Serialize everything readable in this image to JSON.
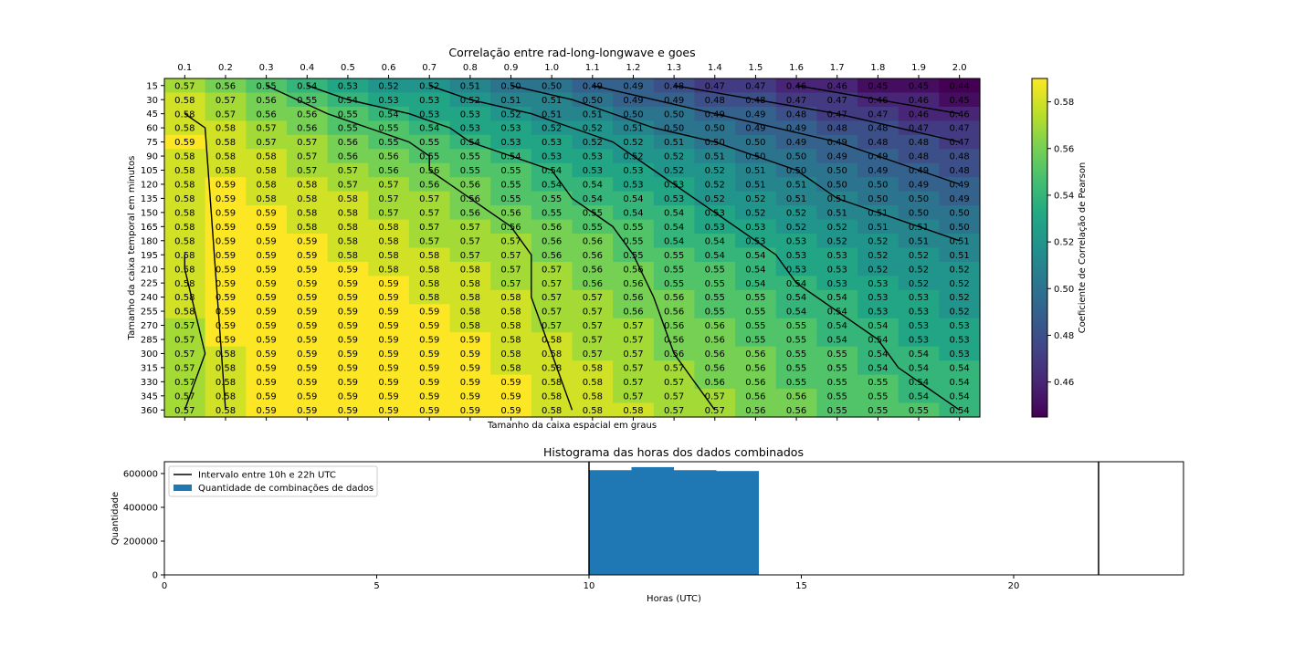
{
  "chart_data": [
    {
      "type": "heatmap",
      "title": "Correlação entre rad-long-longwave e goes",
      "xlabel": "Tamanho da caixa espacial em graus",
      "ylabel": "Tamanho da caixa temporal em minutos",
      "x": [
        "0.1",
        "0.2",
        "0.3",
        "0.4",
        "0.5",
        "0.6",
        "0.7",
        "0.8",
        "0.9",
        "1.0",
        "1.1",
        "1.2",
        "1.3",
        "1.4",
        "1.5",
        "1.6",
        "1.7",
        "1.8",
        "1.9",
        "2.0"
      ],
      "y": [
        "15",
        "30",
        "45",
        "60",
        "75",
        "90",
        "105",
        "120",
        "135",
        "150",
        "165",
        "180",
        "195",
        "210",
        "225",
        "240",
        "255",
        "270",
        "285",
        "300",
        "315",
        "330",
        "345",
        "360"
      ],
      "values": [
        [
          0.57,
          0.56,
          0.55,
          0.54,
          0.53,
          0.52,
          0.52,
          0.51,
          0.5,
          0.5,
          0.49,
          0.49,
          0.48,
          0.47,
          0.47,
          0.46,
          0.46,
          0.45,
          0.45,
          0.44
        ],
        [
          0.58,
          0.57,
          0.56,
          0.55,
          0.54,
          0.53,
          0.53,
          0.52,
          0.51,
          0.51,
          0.5,
          0.49,
          0.49,
          0.48,
          0.48,
          0.47,
          0.47,
          0.46,
          0.46,
          0.45
        ],
        [
          0.58,
          0.57,
          0.56,
          0.56,
          0.55,
          0.54,
          0.53,
          0.53,
          0.52,
          0.51,
          0.51,
          0.5,
          0.5,
          0.49,
          0.49,
          0.48,
          0.47,
          0.47,
          0.46,
          0.46
        ],
        [
          0.58,
          0.58,
          0.57,
          0.56,
          0.55,
          0.55,
          0.54,
          0.53,
          0.53,
          0.52,
          0.52,
          0.51,
          0.5,
          0.5,
          0.49,
          0.49,
          0.48,
          0.48,
          0.47,
          0.47
        ],
        [
          0.59,
          0.58,
          0.57,
          0.57,
          0.56,
          0.55,
          0.55,
          0.54,
          0.53,
          0.53,
          0.52,
          0.52,
          0.51,
          0.5,
          0.5,
          0.49,
          0.49,
          0.48,
          0.48,
          0.47
        ],
        [
          0.58,
          0.58,
          0.58,
          0.57,
          0.56,
          0.56,
          0.55,
          0.55,
          0.54,
          0.53,
          0.53,
          0.52,
          0.52,
          0.51,
          0.5,
          0.5,
          0.49,
          0.49,
          0.48,
          0.48
        ],
        [
          0.58,
          0.58,
          0.58,
          0.57,
          0.57,
          0.56,
          0.56,
          0.55,
          0.55,
          0.54,
          0.53,
          0.53,
          0.52,
          0.52,
          0.51,
          0.5,
          0.5,
          0.49,
          0.49,
          0.48
        ],
        [
          0.58,
          0.59,
          0.58,
          0.58,
          0.57,
          0.57,
          0.56,
          0.56,
          0.55,
          0.54,
          0.54,
          0.53,
          0.53,
          0.52,
          0.51,
          0.51,
          0.5,
          0.5,
          0.49,
          0.49
        ],
        [
          0.58,
          0.59,
          0.58,
          0.58,
          0.58,
          0.57,
          0.57,
          0.56,
          0.55,
          0.55,
          0.54,
          0.54,
          0.53,
          0.52,
          0.52,
          0.51,
          0.51,
          0.5,
          0.5,
          0.49
        ],
        [
          0.58,
          0.59,
          0.59,
          0.58,
          0.58,
          0.57,
          0.57,
          0.56,
          0.56,
          0.55,
          0.55,
          0.54,
          0.54,
          0.53,
          0.52,
          0.52,
          0.51,
          0.51,
          0.5,
          0.5
        ],
        [
          0.58,
          0.59,
          0.59,
          0.58,
          0.58,
          0.58,
          0.57,
          0.57,
          0.56,
          0.56,
          0.55,
          0.55,
          0.54,
          0.53,
          0.53,
          0.52,
          0.52,
          0.51,
          0.51,
          0.5
        ],
        [
          0.58,
          0.59,
          0.59,
          0.59,
          0.58,
          0.58,
          0.57,
          0.57,
          0.57,
          0.56,
          0.56,
          0.55,
          0.54,
          0.54,
          0.53,
          0.53,
          0.52,
          0.52,
          0.51,
          0.51
        ],
        [
          0.58,
          0.59,
          0.59,
          0.59,
          0.58,
          0.58,
          0.58,
          0.57,
          0.57,
          0.56,
          0.56,
          0.55,
          0.55,
          0.54,
          0.54,
          0.53,
          0.53,
          0.52,
          0.52,
          0.51
        ],
        [
          0.58,
          0.59,
          0.59,
          0.59,
          0.59,
          0.58,
          0.58,
          0.58,
          0.57,
          0.57,
          0.56,
          0.56,
          0.55,
          0.55,
          0.54,
          0.53,
          0.53,
          0.52,
          0.52,
          0.52
        ],
        [
          0.58,
          0.59,
          0.59,
          0.59,
          0.59,
          0.59,
          0.58,
          0.58,
          0.57,
          0.57,
          0.56,
          0.56,
          0.55,
          0.55,
          0.54,
          0.54,
          0.53,
          0.53,
          0.52,
          0.52
        ],
        [
          0.58,
          0.59,
          0.59,
          0.59,
          0.59,
          0.59,
          0.58,
          0.58,
          0.58,
          0.57,
          0.57,
          0.56,
          0.56,
          0.55,
          0.55,
          0.54,
          0.54,
          0.53,
          0.53,
          0.52
        ],
        [
          0.58,
          0.59,
          0.59,
          0.59,
          0.59,
          0.59,
          0.59,
          0.58,
          0.58,
          0.57,
          0.57,
          0.56,
          0.56,
          0.55,
          0.55,
          0.54,
          0.54,
          0.53,
          0.53,
          0.52
        ],
        [
          0.57,
          0.59,
          0.59,
          0.59,
          0.59,
          0.59,
          0.59,
          0.58,
          0.58,
          0.57,
          0.57,
          0.57,
          0.56,
          0.56,
          0.55,
          0.55,
          0.54,
          0.54,
          0.53,
          0.53
        ],
        [
          0.57,
          0.59,
          0.59,
          0.59,
          0.59,
          0.59,
          0.59,
          0.59,
          0.58,
          0.58,
          0.57,
          0.57,
          0.56,
          0.56,
          0.55,
          0.55,
          0.54,
          0.54,
          0.53,
          0.53
        ],
        [
          0.57,
          0.58,
          0.59,
          0.59,
          0.59,
          0.59,
          0.59,
          0.59,
          0.58,
          0.58,
          0.57,
          0.57,
          0.56,
          0.56,
          0.56,
          0.55,
          0.55,
          0.54,
          0.54,
          0.53
        ],
        [
          0.57,
          0.58,
          0.59,
          0.59,
          0.59,
          0.59,
          0.59,
          0.59,
          0.58,
          0.58,
          0.58,
          0.57,
          0.57,
          0.56,
          0.56,
          0.55,
          0.55,
          0.54,
          0.54,
          0.54
        ],
        [
          0.57,
          0.58,
          0.59,
          0.59,
          0.59,
          0.59,
          0.59,
          0.59,
          0.59,
          0.58,
          0.58,
          0.57,
          0.57,
          0.56,
          0.56,
          0.55,
          0.55,
          0.55,
          0.54,
          0.54
        ],
        [
          0.57,
          0.58,
          0.59,
          0.59,
          0.59,
          0.59,
          0.59,
          0.59,
          0.59,
          0.58,
          0.58,
          0.57,
          0.57,
          0.57,
          0.56,
          0.56,
          0.55,
          0.55,
          0.54,
          0.54
        ],
        [
          0.57,
          0.58,
          0.59,
          0.59,
          0.59,
          0.59,
          0.59,
          0.59,
          0.59,
          0.58,
          0.58,
          0.58,
          0.57,
          0.57,
          0.56,
          0.56,
          0.55,
          0.55,
          0.55,
          0.54
        ]
      ],
      "contours": [
        {
          "level": 0.58,
          "points": [
            [
              0.1,
              360
            ],
            [
              0.15,
              300
            ],
            [
              0.1,
              210
            ],
            [
              0.1,
              195
            ]
          ]
        },
        {
          "level": 0.57,
          "points": [
            [
              0.2,
              360
            ],
            [
              0.15,
              60
            ],
            [
              0.1,
              45
            ]
          ]
        },
        {
          "level": 0.56,
          "points": [
            [
              0.3,
              15
            ],
            [
              0.45,
              45
            ],
            [
              0.55,
              60
            ],
            [
              0.65,
              75
            ],
            [
              0.7,
              90
            ],
            [
              0.7,
              105
            ],
            [
              0.75,
              120
            ],
            [
              0.8,
              135
            ],
            [
              0.9,
              165
            ],
            [
              0.95,
              195
            ],
            [
              0.95,
              240
            ],
            [
              1.0,
              300
            ],
            [
              1.05,
              360
            ]
          ]
        },
        {
          "level": 0.55,
          "points": [
            [
              0.4,
              15
            ],
            [
              0.5,
              30
            ],
            [
              0.65,
              45
            ],
            [
              0.75,
              60
            ],
            [
              0.8,
              75
            ],
            [
              0.9,
              90
            ],
            [
              1.0,
              105
            ],
            [
              1.05,
              135
            ],
            [
              1.15,
              165
            ],
            [
              1.2,
              195
            ],
            [
              1.25,
              240
            ],
            [
              1.3,
              300
            ],
            [
              1.35,
              330
            ],
            [
              1.4,
              360
            ]
          ]
        },
        {
          "level": 0.54,
          "points": [
            [
              0.7,
              15
            ],
            [
              0.8,
              30
            ],
            [
              0.95,
              45
            ],
            [
              1.05,
              60
            ],
            [
              1.15,
              75
            ],
            [
              1.25,
              105
            ],
            [
              1.35,
              135
            ],
            [
              1.45,
              165
            ],
            [
              1.55,
              195
            ],
            [
              1.6,
              225
            ],
            [
              1.7,
              255
            ],
            [
              1.8,
              285
            ],
            [
              1.85,
              315
            ],
            [
              1.95,
              345
            ],
            [
              2.0,
              360
            ]
          ]
        },
        {
          "level": 0.53,
          "points": [
            [
              0.9,
              15
            ],
            [
              1.05,
              30
            ],
            [
              1.15,
              45
            ],
            [
              1.25,
              60
            ],
            [
              1.4,
              75
            ],
            [
              1.5,
              90
            ],
            [
              1.6,
              105
            ],
            [
              1.7,
              135
            ],
            [
              1.8,
              150
            ],
            [
              1.9,
              165
            ],
            [
              2.0,
              180
            ]
          ]
        },
        {
          "level": 0.52,
          "points": [
            [
              1.1,
              15
            ],
            [
              1.25,
              30
            ],
            [
              1.4,
              45
            ],
            [
              1.55,
              60
            ],
            [
              1.7,
              75
            ],
            [
              1.8,
              90
            ],
            [
              1.9,
              105
            ],
            [
              2.0,
              120
            ]
          ]
        },
        {
          "level": 0.51,
          "points": [
            [
              1.3,
              15
            ],
            [
              1.5,
              30
            ],
            [
              1.7,
              45
            ],
            [
              1.85,
              60
            ],
            [
              2.0,
              75
            ]
          ]
        },
        {
          "level": 0.5,
          "points": [
            [
              1.6,
              15
            ],
            [
              1.8,
              30
            ],
            [
              2.0,
              45
            ]
          ]
        }
      ],
      "colorbar": {
        "label": "Coeficiente de Correlação de Pearson",
        "range": [
          0.445,
          0.59
        ],
        "ticks": [
          0.46,
          0.48,
          0.5,
          0.52,
          0.54,
          0.56,
          0.58
        ],
        "tick_labels": [
          "0.46",
          "0.48",
          "0.50",
          "0.52",
          "0.54",
          "0.56",
          "0.58"
        ],
        "colormap": "viridis"
      }
    },
    {
      "type": "bar",
      "title": "Histograma das horas dos dados combinados",
      "xlabel": "Horas (UTC)",
      "ylabel": "Quantidade",
      "xlim": [
        0,
        24
      ],
      "ylim": [
        0,
        670000
      ],
      "xticks": [
        0,
        5,
        10,
        15,
        20
      ],
      "xtick_labels": [
        "0",
        "5",
        "10",
        "15",
        "20"
      ],
      "yticks": [
        0,
        200000,
        400000,
        600000
      ],
      "ytick_labels": [
        "0",
        "200000",
        "400000",
        "600000"
      ],
      "bins": [
        {
          "from": 10,
          "to": 11,
          "value": 620000
        },
        {
          "from": 11,
          "to": 12,
          "value": 638000
        },
        {
          "from": 12,
          "to": 13,
          "value": 620000
        },
        {
          "from": 13,
          "to": 14,
          "value": 615000
        }
      ],
      "bar_color": "#1f77b4",
      "vlines": [
        10,
        22
      ],
      "legend": [
        {
          "label": "Intervalo entre 10h e 22h UTC",
          "kind": "line",
          "color": "#000000"
        },
        {
          "label": "Quantidade de combinações de dados",
          "kind": "patch",
          "color": "#1f77b4"
        }
      ],
      "legend_position": "upper-left"
    }
  ]
}
